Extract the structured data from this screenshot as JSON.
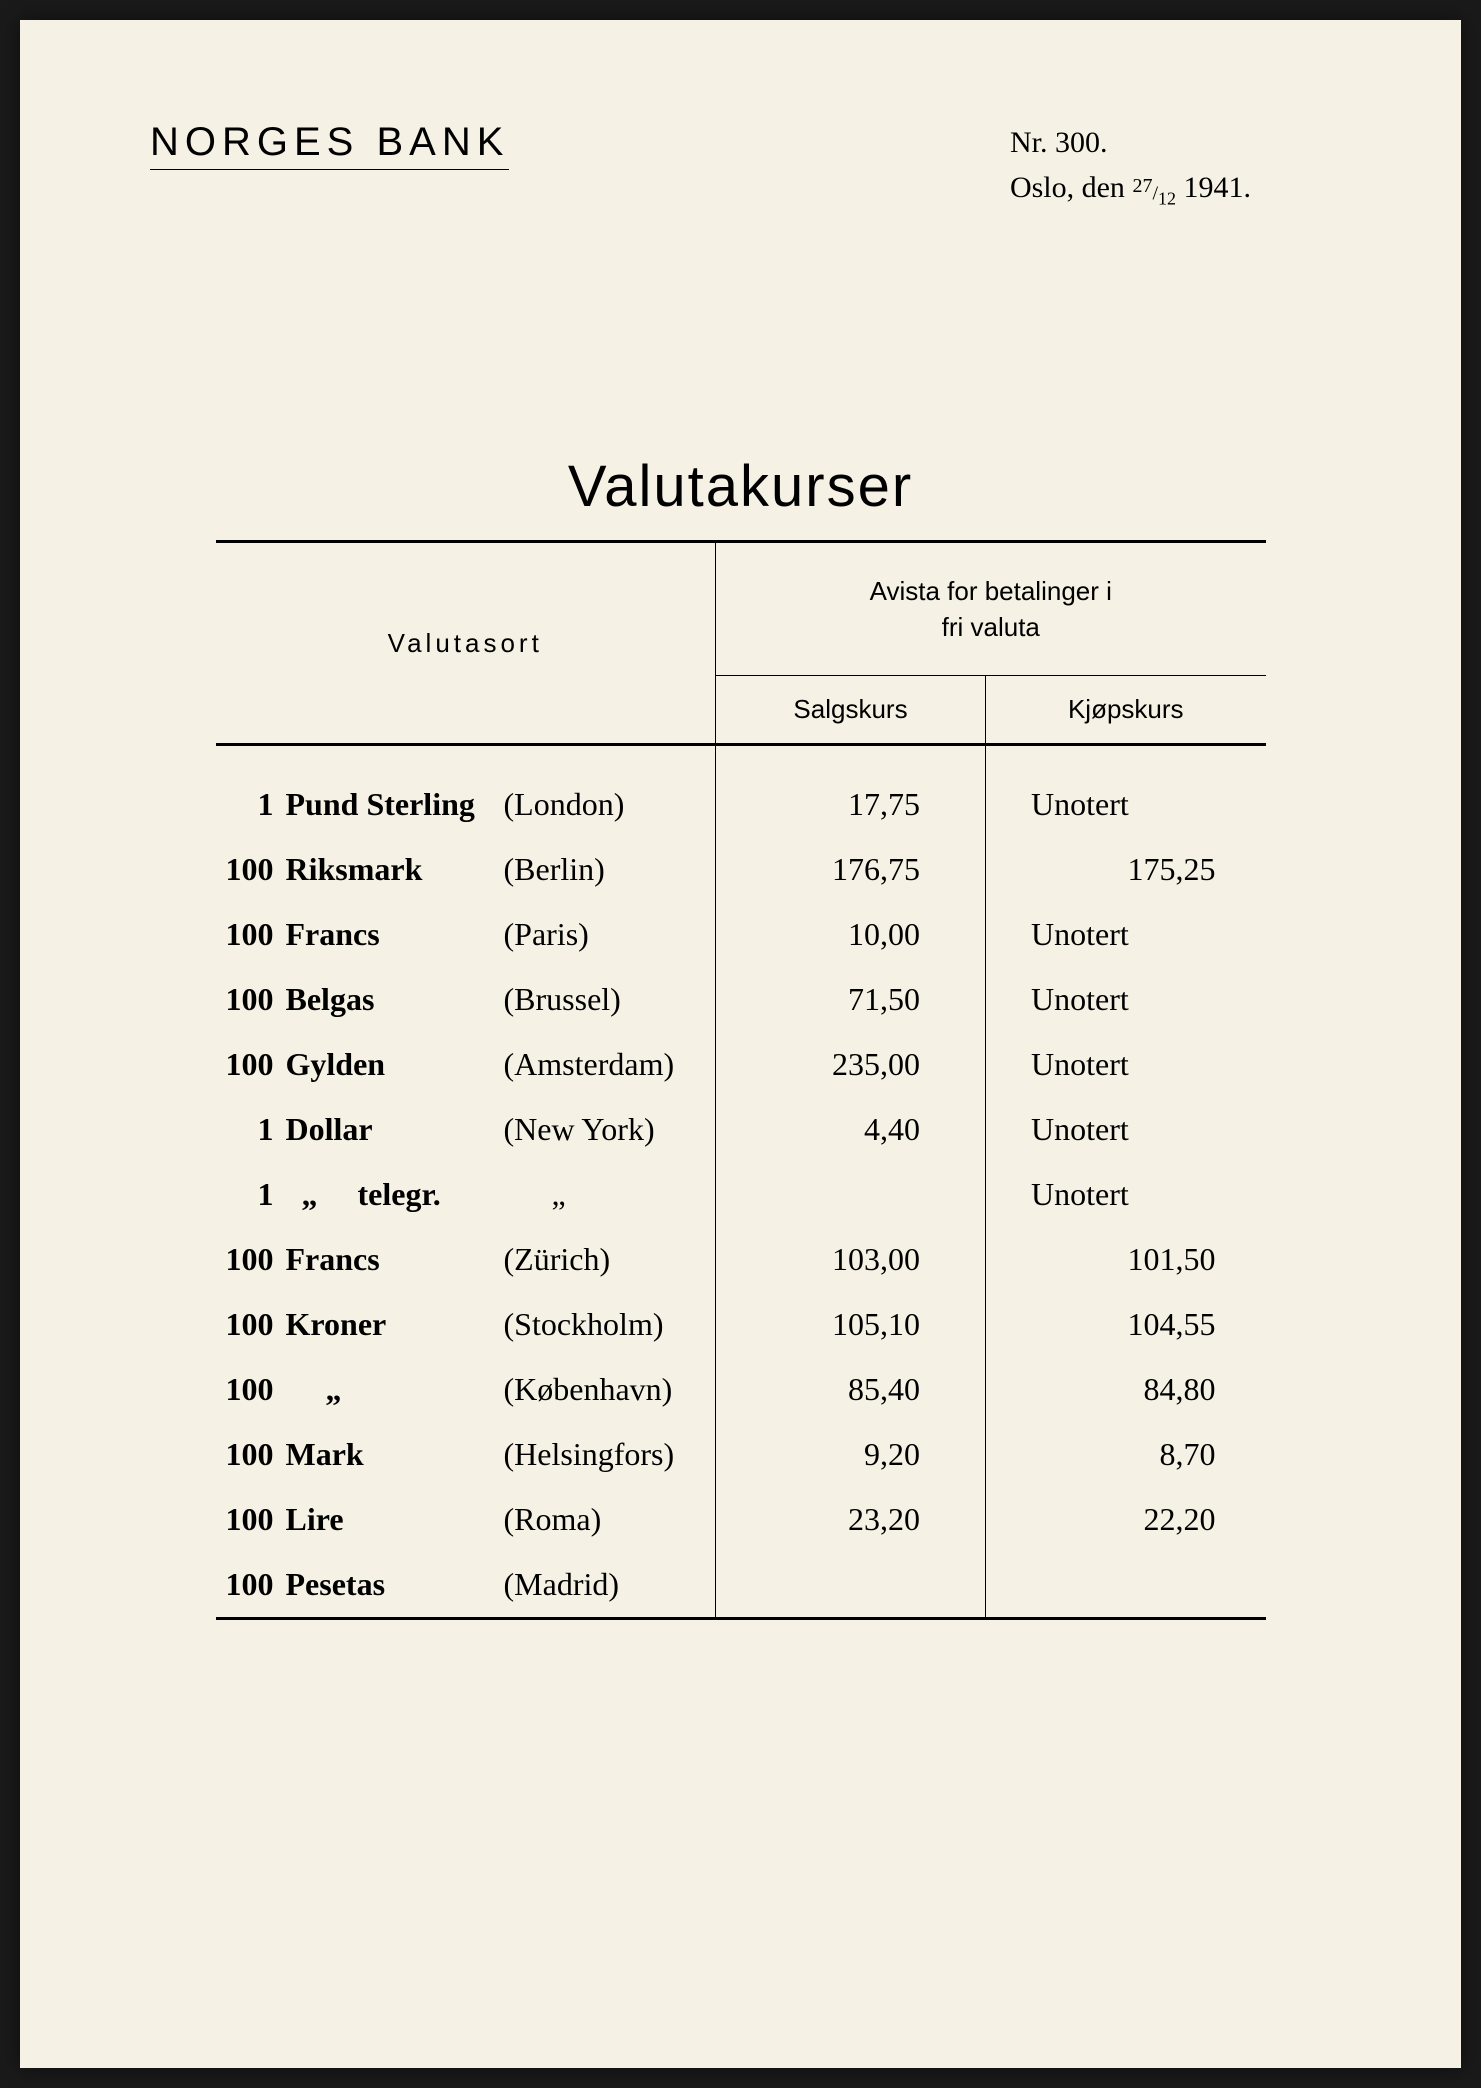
{
  "header": {
    "bank_name": "NORGES BANK",
    "nr_label": "Nr. 300.",
    "place": "Oslo, den",
    "date_num": "27",
    "date_den": "12",
    "year": "1941."
  },
  "title": "Valutakurser",
  "table": {
    "col_valutasort": "Valutasort",
    "col_avista_line1": "Avista for betalinger i",
    "col_avista_line2": "fri valuta",
    "col_salgskurs": "Salgskurs",
    "col_kjopskurs": "Kjøpskurs",
    "rows": [
      {
        "qty": "1",
        "currency": "Pund Sterling",
        "city": "(London)",
        "salgs": "17,75",
        "kjops": "Unotert",
        "kjops_unotert": true
      },
      {
        "qty": "100",
        "currency": "Riksmark",
        "city": "(Berlin)",
        "salgs": "176,75",
        "kjops": "175,25",
        "kjops_unotert": false
      },
      {
        "qty": "100",
        "currency": "Francs",
        "city": "(Paris)",
        "salgs": "10,00",
        "kjops": "Unotert",
        "kjops_unotert": true
      },
      {
        "qty": "100",
        "currency": "Belgas",
        "city": "(Brussel)",
        "salgs": "71,50",
        "kjops": "Unotert",
        "kjops_unotert": true
      },
      {
        "qty": "100",
        "currency": "Gylden",
        "city": "(Amsterdam)",
        "salgs": "235,00",
        "kjops": "Unotert",
        "kjops_unotert": true
      },
      {
        "qty": "1",
        "currency": "Dollar",
        "city": "(New York)",
        "salgs": "4,40",
        "kjops": "Unotert",
        "kjops_unotert": true
      },
      {
        "qty": "1",
        "currency": "  „     telegr.",
        "city": "      „",
        "salgs": "",
        "kjops": "Unotert",
        "kjops_unotert": true
      },
      {
        "qty": "100",
        "currency": "Francs",
        "city": "(Zürich)",
        "salgs": "103,00",
        "kjops": "101,50",
        "kjops_unotert": false
      },
      {
        "qty": "100",
        "currency": "Kroner",
        "city": "(Stockholm)",
        "salgs": "105,10",
        "kjops": "104,55",
        "kjops_unotert": false
      },
      {
        "qty": "100",
        "currency": "     „",
        "city": "(København)",
        "salgs": "85,40",
        "kjops": "84,80",
        "kjops_unotert": false
      },
      {
        "qty": "100",
        "currency": "Mark",
        "city": "(Helsingfors)",
        "salgs": "9,20",
        "kjops": "8,70",
        "kjops_unotert": false
      },
      {
        "qty": "100",
        "currency": "Lire",
        "city": "(Roma)",
        "salgs": "23,20",
        "kjops": "22,20",
        "kjops_unotert": false
      },
      {
        "qty": "100",
        "currency": "Pesetas",
        "city": "(Madrid)",
        "salgs": "",
        "kjops": "",
        "kjops_unotert": false
      }
    ]
  },
  "styling": {
    "page_bg": "#f5f1e4",
    "text_color": "#000000",
    "title_fontsize": 58,
    "header_fontsize": 40,
    "body_fontsize": 32,
    "thead_fontsize": 26
  }
}
